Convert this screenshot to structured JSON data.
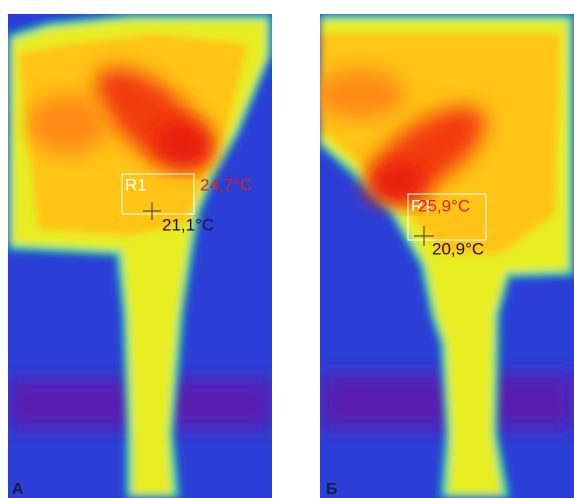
{
  "panels": [
    {
      "label": "А",
      "region": "R1",
      "max_temp": "24,7°C",
      "min_temp": "21,1°C"
    },
    {
      "label": "Б",
      "region": "R1",
      "max_temp": "25,9°C",
      "min_temp": "20,9°C"
    }
  ]
}
